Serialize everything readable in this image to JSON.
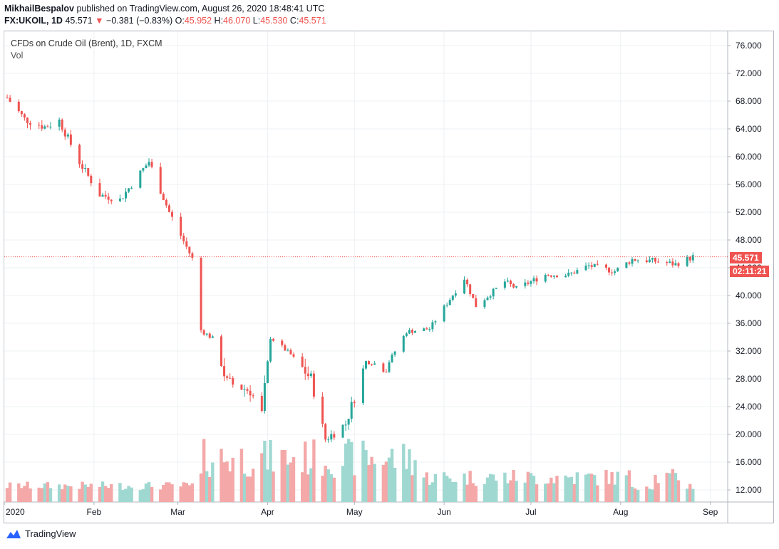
{
  "header": {
    "author": "MikhailBespalov",
    "published": "published on TradingView.com, August 26, 2020 18:48:41 UTC",
    "symbol": "FX:UKOIL, 1D",
    "last": "45.571",
    "change": "−0.381 (−0.83%)",
    "o_label": "O:",
    "o": "45.952",
    "h_label": "H:",
    "h": "46.070",
    "l_label": "L:",
    "l": "45.530",
    "c_label": "C:",
    "c": "45.571"
  },
  "legend": {
    "title": "CFDs on Crude Oil (Brent), 1D, FXCM",
    "vol": "Vol"
  },
  "price_tag": "45.571",
  "countdown_tag": "02:11:21",
  "footer": {
    "brand": "TradingView"
  },
  "colors": {
    "up": "#26a69a",
    "down": "#ef5350",
    "up_vol": "#9fd8d1",
    "down_vol": "#f4a8a8",
    "grid": "#eef0f3"
  },
  "chart_data": {
    "type": "candlestick",
    "y_ticks": [
      "76.000",
      "72.000",
      "68.000",
      "64.000",
      "60.000",
      "56.000",
      "52.000",
      "48.000",
      "44.000",
      "40.000",
      "36.000",
      "32.000",
      "28.000",
      "24.000",
      "20.000",
      "16.000",
      "12.000"
    ],
    "ylim": [
      10,
      77
    ],
    "x_ticks": [
      "2020",
      "Feb",
      "Mar",
      "Apr",
      "May",
      "Jun",
      "Jul",
      "Aug",
      "Sep"
    ],
    "last_price": 45.571,
    "anchors": [
      {
        "date": "2020-01-02",
        "close": 68.5
      },
      {
        "date": "2020-01-08",
        "close": 65.4
      },
      {
        "date": "2020-01-15",
        "close": 64.3
      },
      {
        "date": "2020-01-20",
        "close": 65.2
      },
      {
        "date": "2020-01-27",
        "close": 59.2
      },
      {
        "date": "2020-02-03",
        "close": 54.5
      },
      {
        "date": "2020-02-10",
        "close": 53.8
      },
      {
        "date": "2020-02-20",
        "close": 59.3
      },
      {
        "date": "2020-02-27",
        "close": 52.0
      },
      {
        "date": "2020-03-06",
        "close": 45.3
      },
      {
        "date": "2020-03-09",
        "close": 35.0
      },
      {
        "date": "2020-03-13",
        "close": 33.8
      },
      {
        "date": "2020-03-18",
        "close": 27.5
      },
      {
        "date": "2020-03-26",
        "close": 26.3
      },
      {
        "date": "2020-03-30",
        "close": 23.0
      },
      {
        "date": "2020-04-02",
        "close": 34.0
      },
      {
        "date": "2020-04-09",
        "close": 31.5
      },
      {
        "date": "2020-04-16",
        "close": 28.0
      },
      {
        "date": "2020-04-21",
        "close": 19.3
      },
      {
        "date": "2020-04-28",
        "close": 21.5
      },
      {
        "date": "2020-05-05",
        "close": 30.5
      },
      {
        "date": "2020-05-12",
        "close": 29.8
      },
      {
        "date": "2020-05-19",
        "close": 34.8
      },
      {
        "date": "2020-05-27",
        "close": 35.2
      },
      {
        "date": "2020-06-03",
        "close": 39.5
      },
      {
        "date": "2020-06-08",
        "close": 42.5
      },
      {
        "date": "2020-06-12",
        "close": 38.5
      },
      {
        "date": "2020-06-22",
        "close": 42.0
      },
      {
        "date": "2020-06-26",
        "close": 41.0
      },
      {
        "date": "2020-07-06",
        "close": 43.0
      },
      {
        "date": "2020-07-14",
        "close": 43.0
      },
      {
        "date": "2020-07-21",
        "close": 44.3
      },
      {
        "date": "2020-07-30",
        "close": 43.5
      },
      {
        "date": "2020-08-05",
        "close": 45.2
      },
      {
        "date": "2020-08-12",
        "close": 45.0
      },
      {
        "date": "2020-08-20",
        "close": 44.5
      },
      {
        "date": "2020-08-26",
        "close": 45.571
      }
    ]
  }
}
